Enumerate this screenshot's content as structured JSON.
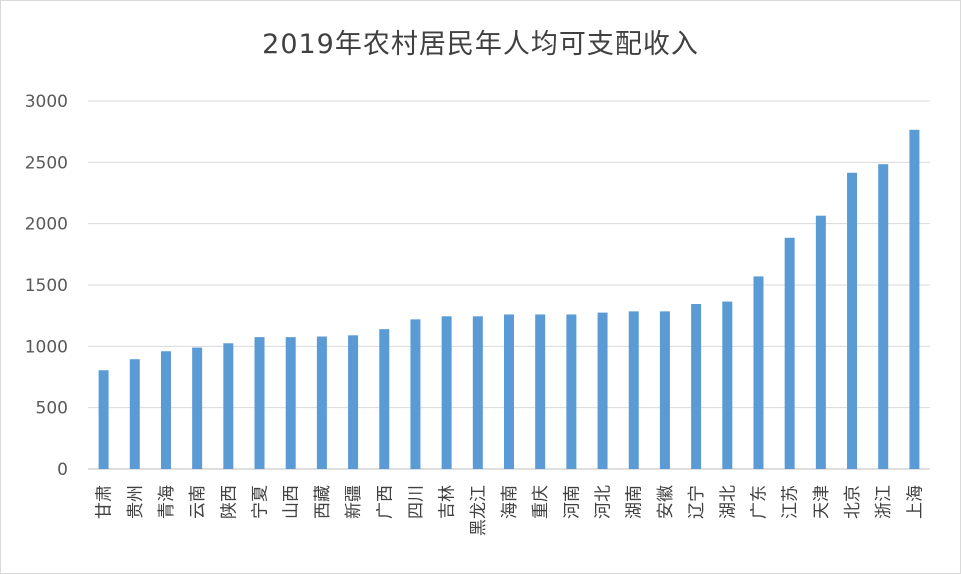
{
  "chart_data": {
    "type": "bar",
    "title": "2019年农村居民年人均可支配收入",
    "xlabel": "",
    "ylabel": "",
    "ylim": [
      0,
      3000
    ],
    "yticks": [
      0,
      500,
      1000,
      1500,
      2000,
      2500,
      3000
    ],
    "grid": true,
    "legend": "none",
    "bar_color": "#5b9bd5",
    "categories": [
      "甘肃",
      "贵州",
      "青海",
      "云南",
      "陕西",
      "宁夏",
      "山西",
      "西藏",
      "新疆",
      "广西",
      "四川",
      "吉林",
      "黑龙江",
      "海南",
      "重庆",
      "河南",
      "河北",
      "湖南",
      "安徽",
      "辽宁",
      "湖北",
      "广东",
      "江苏",
      "天津",
      "北京",
      "浙江",
      "上海"
    ],
    "values": [
      805,
      895,
      960,
      990,
      1025,
      1075,
      1075,
      1080,
      1090,
      1140,
      1220,
      1245,
      1245,
      1260,
      1260,
      1260,
      1275,
      1285,
      1285,
      1345,
      1365,
      1570,
      1885,
      2065,
      2415,
      2485,
      2765
    ]
  }
}
